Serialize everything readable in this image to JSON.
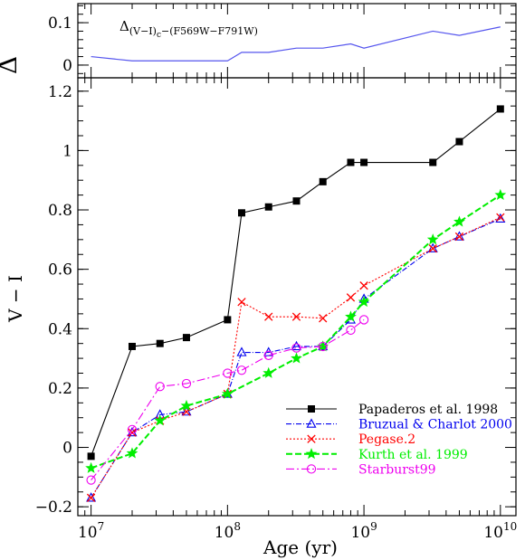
{
  "chart_data": [
    {
      "type": "line",
      "panel": "top",
      "ylabel": "Δ",
      "annotation": {
        "main": "Δ",
        "sub": "(V−I)",
        "sub2": "c",
        "tail": "−(F569W−F791W)"
      },
      "xscale": "log",
      "xlim": [
        8000000,
        13000000000
      ],
      "ylim": [
        -0.03,
        0.145
      ],
      "yticks": [
        {
          "v": 0,
          "label": "0"
        },
        {
          "v": 0.1,
          "label": "0.1"
        }
      ],
      "color": "#5555ee",
      "x": [
        10000000,
        20000000,
        32000000,
        50000000,
        100000000,
        127000000,
        200000000,
        320000000,
        500000000,
        800000000,
        1000000000,
        3200000000,
        5000000000,
        10000000000
      ],
      "values": [
        0.02,
        0.01,
        0.01,
        0.01,
        0.01,
        0.03,
        0.03,
        0.04,
        0.04,
        0.05,
        0.04,
        0.08,
        0.07,
        0.09
      ]
    },
    {
      "type": "line",
      "panel": "main",
      "xlabel": "Age (yr)",
      "ylabel": "V − I",
      "xscale": "log",
      "xlim": [
        8000000,
        13000000000
      ],
      "ylim": [
        -0.23,
        1.245
      ],
      "xticks": [
        {
          "v": 10000000,
          "base": "10",
          "exp": "7"
        },
        {
          "v": 100000000,
          "base": "10",
          "exp": "8"
        },
        {
          "v": 1000000000,
          "base": "10",
          "exp": "9"
        },
        {
          "v": 10000000000,
          "base": "10",
          "exp": "10"
        }
      ],
      "yticks": [
        {
          "v": -0.2,
          "label": "−0.2"
        },
        {
          "v": 0,
          "label": "0"
        },
        {
          "v": 0.2,
          "label": "0.2"
        },
        {
          "v": 0.4,
          "label": "0.4"
        },
        {
          "v": 0.6,
          "label": "0.6"
        },
        {
          "v": 0.8,
          "label": "0.8"
        },
        {
          "v": 1,
          "label": "1"
        },
        {
          "v": 1.2,
          "label": "1.2"
        }
      ],
      "legend_position": "bottom-right",
      "series": [
        {
          "name": "Papaderos et al. 1998",
          "color": "#000000",
          "dash": "",
          "marker": "square",
          "x": [
            10000000,
            20000000,
            32000000,
            50000000,
            100000000,
            127000000,
            200000000,
            320000000,
            500000000,
            800000000,
            1000000000,
            3200000000,
            5000000000,
            10000000000
          ],
          "values": [
            -0.03,
            0.34,
            0.35,
            0.37,
            0.43,
            0.79,
            0.81,
            0.83,
            0.895,
            0.96,
            0.96,
            0.96,
            1.03,
            1.14
          ]
        },
        {
          "name": "Bruzual & Charlot 2000",
          "color": "#0000ee",
          "dash": "6 2 1 2",
          "marker": "triangle",
          "x": [
            10000000,
            20000000,
            32000000,
            50000000,
            100000000,
            127000000,
            200000000,
            320000000,
            500000000,
            800000000,
            1000000000,
            3200000000,
            5000000000,
            10000000000
          ],
          "values": [
            -0.17,
            0.05,
            0.11,
            0.12,
            0.18,
            0.32,
            0.32,
            0.34,
            0.34,
            0.43,
            0.5,
            0.67,
            0.71,
            0.77
          ]
        },
        {
          "name": "Pegase.2",
          "color": "#ff0000",
          "dash": "2 2",
          "marker": "cross",
          "x": [
            10000000,
            20000000,
            32000000,
            50000000,
            100000000,
            127000000,
            200000000,
            320000000,
            500000000,
            800000000,
            1000000000,
            3200000000,
            5000000000,
            10000000000
          ],
          "values": [
            -0.17,
            0.05,
            0.09,
            0.12,
            0.18,
            0.49,
            0.44,
            0.44,
            0.435,
            0.505,
            0.545,
            0.67,
            0.71,
            0.775
          ]
        },
        {
          "name": "Kurth et al. 1999",
          "color": "#00ee00",
          "dash": "7 3",
          "marker": "star",
          "x": [
            10000000,
            20000000,
            32000000,
            50000000,
            100000000,
            200000000,
            320000000,
            500000000,
            800000000,
            1000000000,
            3200000000,
            5000000000,
            10000000000
          ],
          "values": [
            -0.07,
            -0.02,
            0.09,
            0.14,
            0.18,
            0.25,
            0.3,
            0.34,
            0.44,
            0.49,
            0.7,
            0.76,
            0.85
          ]
        },
        {
          "name": "Starburst99",
          "color": "#ee00ee",
          "dash": "9 3 2 3",
          "marker": "circle",
          "x": [
            10000000,
            20000000,
            32000000,
            50000000,
            100000000,
            127000000,
            200000000,
            320000000,
            500000000,
            800000000,
            1000000000
          ],
          "values": [
            -0.11,
            0.06,
            0.205,
            0.215,
            0.25,
            0.26,
            0.31,
            0.335,
            0.34,
            0.395,
            0.43
          ]
        }
      ]
    }
  ]
}
